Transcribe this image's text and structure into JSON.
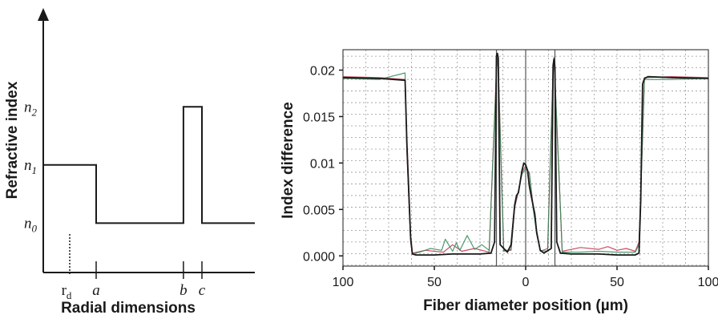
{
  "chart_data": [
    {
      "type": "line",
      "ylabel": "Refractive index",
      "xlabel": "Radial dimensions",
      "y_levels": [
        {
          "label": "n",
          "sub": "2",
          "value": 2
        },
        {
          "label": "n",
          "sub": "1",
          "value": 1
        },
        {
          "label": "n",
          "sub": "0",
          "value": 0
        }
      ],
      "x_ticks": [
        {
          "label": "r",
          "sub": "d",
          "value": 1.0,
          "style": "upright"
        },
        {
          "label": "a",
          "sub": "",
          "value": 2.0,
          "style": "italic"
        },
        {
          "label": "b",
          "sub": "",
          "value": 5.3,
          "style": "italic"
        },
        {
          "label": "c",
          "sub": "",
          "value": 6.0,
          "style": "italic"
        }
      ],
      "profile": {
        "x": [
          0,
          2.0,
          2.0,
          5.3,
          5.3,
          6.0,
          6.0,
          8.0
        ],
        "y": [
          1,
          1,
          0,
          0,
          2,
          2,
          0,
          0
        ]
      },
      "xlim": [
        0,
        8.0
      ],
      "ylim": [
        -0.85,
        3.7
      ]
    },
    {
      "type": "line",
      "xlabel": "Fiber diameter position (µm)",
      "ylabel": "Index difference",
      "x_ticks": [
        "100",
        "50",
        "0",
        "50",
        "100"
      ],
      "x_tick_values": [
        -100,
        -50,
        0,
        50,
        100
      ],
      "y_ticks": [
        "0.000",
        "0.005",
        "0.01",
        "0.015",
        "0.02"
      ],
      "y_tick_values": [
        0,
        0.005,
        0.01,
        0.015,
        0.02
      ],
      "xlim": [
        -100,
        100
      ],
      "ylim": [
        -0.0011,
        0.0222
      ],
      "grid": true,
      "series_colors": [
        "#1a1a1a",
        "#c0304a",
        "#2e8b57"
      ],
      "series": [
        {
          "x": [
            -100,
            -80,
            -66,
            -65,
            -63,
            -62,
            -60,
            -50,
            -40,
            -30,
            -25,
            -19,
            -17,
            -16,
            -15.5,
            -15,
            -14,
            -10,
            -8,
            -6,
            -5,
            -4,
            -3,
            -2,
            -1,
            0,
            1,
            2,
            3,
            4,
            5,
            6,
            8,
            10,
            14,
            15,
            15.5,
            16,
            17,
            19,
            25,
            30,
            40,
            50,
            60,
            62,
            63,
            64,
            65,
            67,
            80,
            100
          ],
          "y": [
            0.0192,
            0.0191,
            0.0189,
            0.012,
            0.002,
            0.0002,
            0.0001,
            0.0001,
            0.0002,
            0.0002,
            0.0002,
            0.0003,
            0.0015,
            0.0215,
            0.0218,
            0.0213,
            0.0012,
            0.0004,
            0.0012,
            0.0055,
            0.0065,
            0.0068,
            0.008,
            0.0092,
            0.01,
            0.0098,
            0.0092,
            0.0075,
            0.0065,
            0.0055,
            0.0045,
            0.0025,
            0.0006,
            0.0003,
            0.0008,
            0.0205,
            0.0212,
            0.0203,
            0.0015,
            0.0003,
            0.0002,
            0.0002,
            0.0002,
            0.0001,
            0.0001,
            0.0003,
            0.006,
            0.0185,
            0.0191,
            0.0193,
            0.0192,
            0.0191
          ]
        },
        {
          "x": [
            -100,
            -80,
            -66,
            -65,
            -63,
            -62,
            -55,
            -45,
            -40,
            -35,
            -28,
            -20,
            -16,
            -15.5,
            -15,
            -12,
            -8,
            -6,
            -4,
            -2,
            0,
            2,
            4,
            6,
            8,
            12,
            15,
            15.5,
            16,
            20,
            30,
            40,
            45,
            50,
            55,
            60,
            62,
            63,
            65,
            80,
            100
          ],
          "y": [
            0.0193,
            0.0192,
            0.019,
            0.011,
            0.0015,
            0.0003,
            0.0006,
            0.0004,
            0.0012,
            0.0005,
            0.0008,
            0.0004,
            0.02,
            0.0213,
            0.0205,
            0.0006,
            0.0006,
            0.0052,
            0.0069,
            0.009,
            0.0097,
            0.0088,
            0.0056,
            0.0028,
            0.0005,
            0.0008,
            0.0198,
            0.0207,
            0.019,
            0.0005,
            0.0009,
            0.0007,
            0.001,
            0.0006,
            0.0008,
            0.0005,
            0.0015,
            0.007,
            0.0192,
            0.0193,
            0.0192
          ]
        },
        {
          "x": [
            -100,
            -80,
            -66,
            -65,
            -63,
            -62,
            -58,
            -52,
            -46,
            -44,
            -40,
            -38,
            -36,
            -32,
            -28,
            -24,
            -20,
            -16,
            -15.5,
            -15,
            -12,
            -8,
            -6,
            -4,
            -2,
            0,
            2,
            4,
            6,
            8,
            12,
            15,
            15.5,
            16,
            20,
            30,
            40,
            50,
            60,
            62,
            63,
            65,
            80,
            100
          ],
          "y": [
            0.0191,
            0.019,
            0.0197,
            0.0115,
            0.0018,
            0.0002,
            0.0004,
            0.0008,
            0.0006,
            0.0018,
            0.0005,
            0.0014,
            0.0006,
            0.0022,
            0.0007,
            0.0012,
            0.0006,
            0.0195,
            0.0214,
            0.02,
            0.0005,
            0.0007,
            0.0054,
            0.007,
            0.0088,
            0.0094,
            0.009,
            0.0052,
            0.0025,
            0.0006,
            0.0005,
            0.0202,
            0.0214,
            0.0192,
            0.0004,
            0.0004,
            0.0005,
            0.0004,
            0.0004,
            0.0012,
            0.0065,
            0.019,
            0.019,
            0.0191
          ]
        }
      ]
    }
  ]
}
